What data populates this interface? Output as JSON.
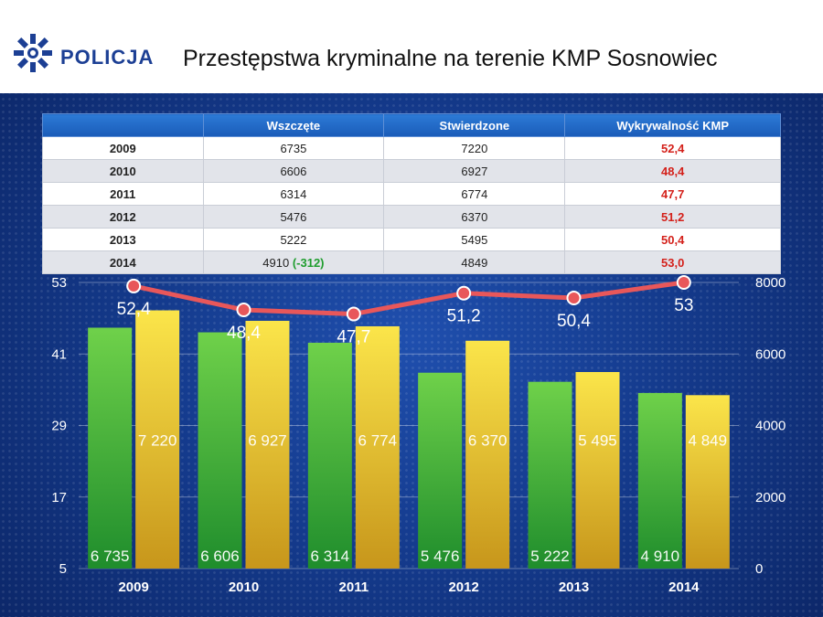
{
  "header": {
    "brand": "POLICJA",
    "title": "Przestępstwa kryminalne na terenie KMP Sosnowiec"
  },
  "table": {
    "columns": [
      "",
      "Wszczęte",
      "Stwierdzone",
      "Wykrywalność KMP"
    ],
    "rows": [
      {
        "year": "2009",
        "wszczete": "6735",
        "delta": "",
        "stwierdzone": "7220",
        "wykrywalnosc": "52,4"
      },
      {
        "year": "2010",
        "wszczete": "6606",
        "delta": "",
        "stwierdzone": "6927",
        "wykrywalnosc": "48,4"
      },
      {
        "year": "2011",
        "wszczete": "6314",
        "delta": "",
        "stwierdzone": "6774",
        "wykrywalnosc": "47,7"
      },
      {
        "year": "2012",
        "wszczete": "5476",
        "delta": "",
        "stwierdzone": "6370",
        "wykrywalnosc": "51,2"
      },
      {
        "year": "2013",
        "wszczete": "5222",
        "delta": "",
        "stwierdzone": "5495",
        "wykrywalnosc": "50,4"
      },
      {
        "year": "2014",
        "wszczete": "4910",
        "delta": "(-312)",
        "stwierdzone": "4849",
        "wykrywalnosc": "53,0"
      }
    ]
  },
  "chart_data": {
    "type": "bar",
    "categories": [
      "2009",
      "2010",
      "2011",
      "2012",
      "2013",
      "2014"
    ],
    "series": [
      {
        "values": [
          6735,
          6606,
          6314,
          5476,
          5222,
          4910
        ],
        "labels": [
          "6 735",
          "6 606",
          "6 314",
          "5 476",
          "5 222",
          "4 910"
        ],
        "color": "#3cb33a",
        "axis": "right",
        "kind": "bar"
      },
      {
        "values": [
          7220,
          6927,
          6774,
          6370,
          5495,
          4849
        ],
        "labels": [
          "7 220",
          "6 927",
          "6 774",
          "6 370",
          "5 495",
          "4 849"
        ],
        "color": "#e8c020",
        "axis": "right",
        "kind": "bar"
      },
      {
        "values": [
          52.4,
          48.4,
          47.7,
          51.2,
          50.4,
          53
        ],
        "labels": [
          "52,4",
          "48,4",
          "47,7",
          "51,2",
          "50,4",
          "53"
        ],
        "color": "#e8575a",
        "axis": "left",
        "kind": "line"
      }
    ],
    "left_axis": {
      "ylim": [
        5,
        53
      ],
      "ticks": [
        "5",
        "17",
        "29",
        "41",
        "53"
      ],
      "tick_values": [
        5,
        17,
        29,
        41,
        53
      ]
    },
    "right_axis": {
      "ylim": [
        0,
        8000
      ],
      "ticks": [
        "0",
        "2000",
        "4000",
        "6000",
        "8000"
      ],
      "tick_values": [
        0,
        2000,
        4000,
        6000,
        8000
      ]
    },
    "grid": true,
    "legend": "none"
  }
}
